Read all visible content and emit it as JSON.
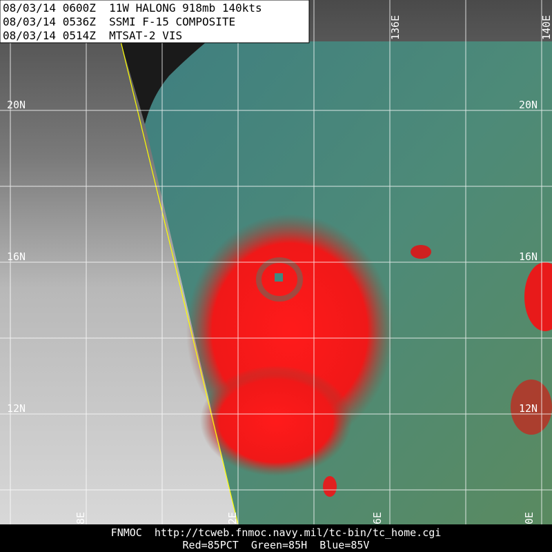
{
  "header": {
    "lines": [
      "08/03/14 0600Z  11W HALONG 918mb 140kts",
      "08/03/14 0536Z  SSMI F-15 COMPOSITE",
      "08/03/14 0514Z  MTSAT-2 VIS"
    ]
  },
  "latitude_labels": {
    "left": [
      "20N",
      "16N",
      "12N"
    ],
    "right": [
      "20N",
      "16N",
      "12N"
    ]
  },
  "longitude_labels": {
    "top": [
      "136E",
      "140E"
    ],
    "bottom": [
      "8E",
      "2E",
      "6E",
      "0E"
    ]
  },
  "footer": {
    "lines": [
      "FNMOC  http://tcweb.fnmoc.navy.mil/tc-bin/tc_home.cgi",
      "Red=85PCT  Green=85H  Blue=85V"
    ]
  }
}
